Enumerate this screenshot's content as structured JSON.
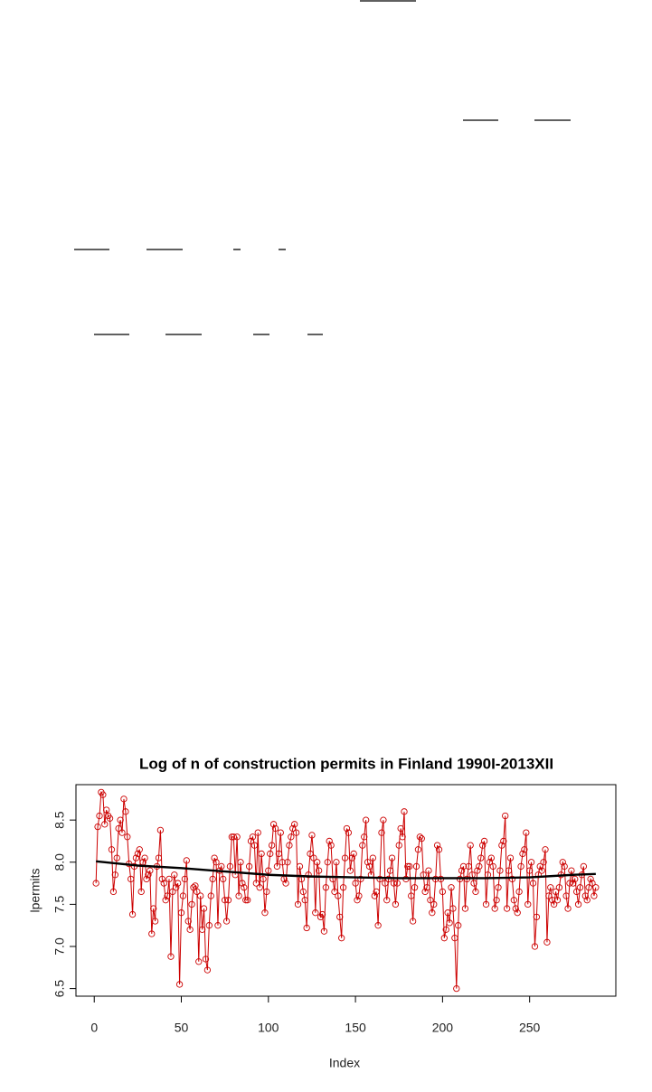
{
  "chart_data": {
    "type": "line",
    "title": "Log of n of construction permits in Finland 1990I-2013XII",
    "xlabel": "Index",
    "ylabel": "lpermits",
    "xlim": [
      -10.5,
      299.5
    ],
    "xticks": [
      0,
      50,
      100,
      150,
      200,
      250
    ],
    "ylim": [
      6.41,
      8.92
    ],
    "yticks": [
      6.5,
      {
        "value": 7,
        "label": "7.0"
      },
      7.5,
      {
        "value": 8,
        "label": "8.0"
      },
      8.5
    ],
    "series": [
      {
        "color": "#cc0000",
        "marker": "circle",
        "values": [
          7.75,
          8.42,
          8.55,
          8.83,
          8.8,
          8.45,
          8.62,
          8.55,
          8.52,
          8.15,
          7.65,
          7.85,
          8.05,
          8.4,
          8.5,
          8.35,
          8.75,
          8.6,
          8.3,
          7.98,
          7.8,
          7.38,
          7.95,
          8.05,
          8.1,
          8.15,
          7.65,
          8.0,
          8.05,
          7.8,
          7.85,
          7.9,
          7.15,
          7.45,
          7.3,
          7.95,
          8.05,
          8.38,
          7.8,
          7.75,
          7.55,
          7.6,
          7.8,
          6.88,
          7.65,
          7.85,
          7.7,
          7.75,
          6.55,
          7.4,
          7.6,
          7.8,
          8.02,
          7.3,
          7.2,
          7.5,
          7.7,
          7.72,
          7.65,
          6.82,
          7.6,
          7.2,
          7.45,
          6.85,
          6.72,
          7.25,
          7.6,
          7.8,
          8.05,
          8.0,
          7.25,
          7.9,
          7.95,
          7.8,
          7.55,
          7.3,
          7.55,
          7.95,
          8.3,
          8.3,
          7.85,
          8.3,
          7.6,
          8.0,
          7.75,
          7.7,
          7.55,
          7.55,
          7.95,
          8.25,
          8.3,
          8.2,
          7.75,
          8.35,
          7.7,
          8.1,
          7.8,
          7.4,
          7.65,
          7.9,
          8.1,
          8.2,
          8.45,
          8.4,
          7.95,
          8.1,
          8.35,
          8.0,
          7.8,
          7.75,
          8.0,
          8.2,
          8.3,
          8.4,
          8.45,
          8.35,
          7.5,
          7.95,
          7.8,
          7.65,
          7.55,
          7.22,
          7.85,
          8.1,
          8.32,
          8.05,
          7.4,
          8.0,
          7.9,
          7.35,
          7.38,
          7.18,
          7.7,
          8.0,
          8.25,
          8.2,
          7.8,
          7.65,
          8.0,
          7.6,
          7.35,
          7.1,
          7.7,
          8.05,
          8.4,
          8.35,
          7.9,
          8.05,
          8.1,
          7.75,
          7.55,
          7.6,
          7.8,
          8.2,
          8.3,
          8.5,
          8.0,
          7.95,
          7.85,
          8.05,
          7.6,
          7.65,
          7.25,
          7.8,
          8.35,
          8.5,
          7.75,
          7.55,
          7.8,
          7.9,
          8.05,
          7.75,
          7.5,
          7.75,
          8.2,
          8.4,
          8.3,
          8.6,
          7.8,
          7.95,
          7.95,
          7.6,
          7.3,
          7.7,
          7.95,
          8.15,
          8.3,
          8.28,
          7.85,
          7.65,
          7.7,
          7.9,
          7.55,
          7.4,
          7.5,
          7.8,
          8.2,
          8.15,
          7.8,
          7.65,
          7.1,
          7.2,
          7.4,
          7.28,
          7.7,
          7.45,
          7.1,
          6.5,
          7.25,
          7.8,
          7.9,
          7.95,
          7.45,
          7.8,
          7.95,
          8.2,
          7.85,
          7.75,
          7.65,
          7.9,
          7.95,
          8.05,
          8.2,
          8.25,
          7.5,
          7.85,
          8.0,
          8.05,
          7.95,
          7.45,
          7.55,
          7.7,
          7.9,
          8.2,
          8.25,
          8.55,
          7.45,
          7.9,
          8.05,
          7.8,
          7.55,
          7.45,
          7.4,
          7.65,
          7.95,
          8.1,
          8.15,
          8.35,
          7.5,
          7.9,
          8.0,
          7.75,
          7.0,
          7.35,
          7.85,
          7.95,
          7.9,
          8.0,
          8.15,
          7.05,
          7.6,
          7.7,
          7.55,
          7.5,
          7.65,
          7.55,
          7.7,
          7.85,
          8.0,
          7.95,
          7.6,
          7.45,
          7.75,
          7.9,
          7.75,
          7.8,
          7.65,
          7.5,
          7.7,
          7.85,
          7.95,
          7.6,
          7.55,
          7.7,
          7.8,
          7.75,
          7.6,
          7.7
        ]
      },
      {
        "color": "#000000",
        "x": [
          1,
          25,
          50,
          75,
          100,
          125,
          150,
          175,
          200,
          225,
          250,
          275,
          288
        ],
        "values": [
          8.01,
          7.96,
          7.93,
          7.89,
          7.85,
          7.83,
          7.82,
          7.81,
          7.81,
          7.81,
          7.82,
          7.85,
          7.86
        ]
      }
    ]
  }
}
